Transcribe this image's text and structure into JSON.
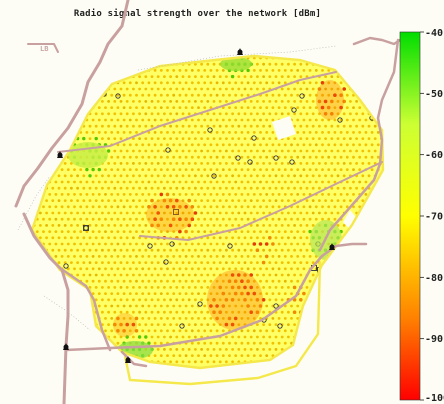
{
  "title": "Radio signal strength over the network [dBm]",
  "map_label": "LB",
  "colorbar": {
    "ticks": [
      "-40",
      "-50",
      "-60",
      "-70",
      "-80",
      "-90",
      "-100"
    ],
    "tick_values": [
      -40,
      -50,
      -60,
      -70,
      -80,
      -90,
      -100
    ],
    "range": [
      -100,
      -40
    ],
    "colors": [
      "#ff0000",
      "#ff7a00",
      "#ffcc00",
      "#ffff00",
      "#ccff33",
      "#00ee00"
    ]
  },
  "colors": {
    "road": "#c9a0a0",
    "coverage_boundary": "#f5e84a",
    "background": "#fdfdf5"
  }
}
